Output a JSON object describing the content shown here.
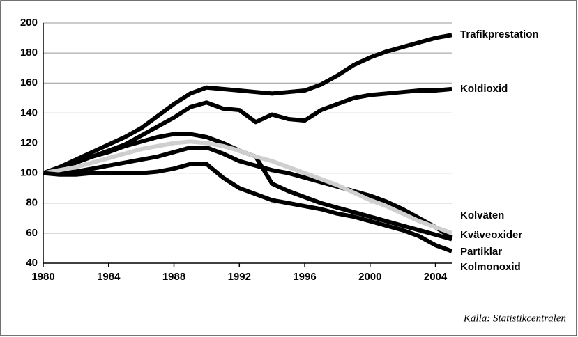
{
  "chart_data": {
    "type": "line",
    "x": [
      1980,
      1981,
      1982,
      1983,
      1984,
      1985,
      1986,
      1987,
      1988,
      1989,
      1990,
      1991,
      1992,
      1993,
      1994,
      1995,
      1996,
      1997,
      1998,
      1999,
      2000,
      2001,
      2002,
      2003,
      2004,
      2005
    ],
    "xlim": [
      1980,
      2005
    ],
    "xticks": [
      1980,
      1984,
      1988,
      1992,
      1996,
      2000,
      2004
    ],
    "ylim": [
      40,
      200
    ],
    "yticks": [
      40,
      60,
      80,
      100,
      120,
      140,
      160,
      180,
      200
    ],
    "grid": true,
    "series": [
      {
        "name": "Trafikprestation",
        "color": "#000000",
        "values": [
          100,
          104,
          109,
          114,
          119,
          124,
          130,
          138,
          146,
          153,
          157,
          156,
          155,
          154,
          153,
          154,
          155,
          159,
          165,
          172,
          177,
          181,
          184,
          187,
          190,
          192
        ]
      },
      {
        "name": "Koldioxid",
        "color": "#000000",
        "values": [
          100,
          103,
          107,
          111,
          115,
          119,
          125,
          131,
          137,
          144,
          147,
          143,
          142,
          134,
          139,
          136,
          135,
          142,
          146,
          150,
          152,
          153,
          154,
          155,
          155,
          156
        ]
      },
      {
        "name": "Kolväten",
        "color": "#000000",
        "values": [
          100,
          103,
          107,
          111,
          114,
          118,
          121,
          124,
          126,
          126,
          124,
          120,
          115,
          111,
          93,
          88,
          84,
          80,
          77,
          74,
          71,
          68,
          65,
          62,
          59,
          56
        ]
      },
      {
        "name": "Kväveoxider",
        "color": "#000000",
        "values": [
          100,
          100,
          101,
          103,
          105,
          107,
          109,
          111,
          114,
          117,
          117,
          113,
          108,
          105,
          102,
          100,
          97,
          94,
          91,
          88,
          85,
          81,
          76,
          70,
          64,
          57
        ]
      },
      {
        "name": "Partiklar",
        "color": "#cfcfcf",
        "values": [
          100,
          102,
          104,
          107,
          110,
          113,
          116,
          118,
          120,
          121,
          120,
          118,
          115,
          111,
          108,
          104,
          100,
          96,
          92,
          87,
          82,
          78,
          73,
          68,
          64,
          60
        ]
      },
      {
        "name": "Kolmonoxid",
        "color": "#000000",
        "values": [
          100,
          99,
          99,
          100,
          100,
          100,
          100,
          101,
          103,
          106,
          106,
          97,
          90,
          86,
          82,
          80,
          78,
          76,
          73,
          71,
          68,
          65,
          62,
          58,
          52,
          48
        ]
      }
    ],
    "source": "Källa: Statistikcentralen"
  }
}
